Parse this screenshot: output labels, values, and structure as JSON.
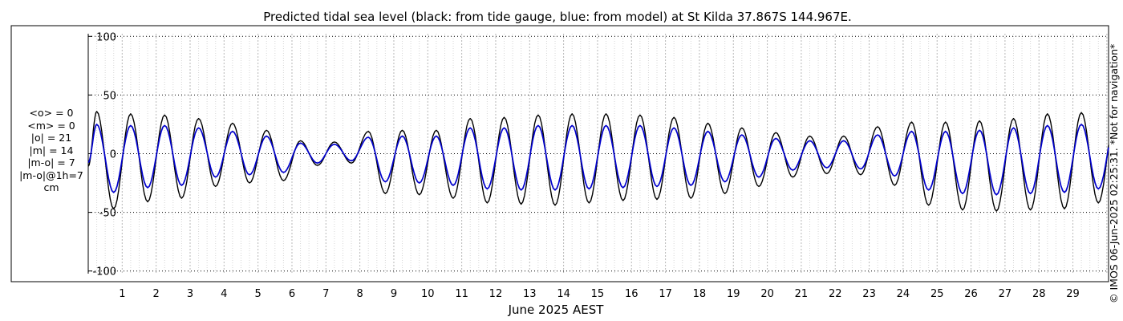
{
  "chart_data": {
    "type": "line",
    "title": "Predicted tidal sea level (black: from tide gauge, blue: from model) at St Kilda 37.867S 144.967E.",
    "xlabel": "June 2025 AEST",
    "ylabel": "",
    "ylim": [
      -105,
      105
    ],
    "xlim_days": [
      0.0,
      30.05
    ],
    "yticks": [
      100,
      50,
      0,
      -50,
      -100
    ],
    "ytick_labels": [
      "100",
      "50",
      "0",
      "-50",
      "-100"
    ],
    "xtick_labels": [
      "1",
      "2",
      "3",
      "4",
      "5",
      "6",
      "7",
      "8",
      "9",
      "10",
      "11",
      "12",
      "13",
      "14",
      "15",
      "16",
      "17",
      "18",
      "19",
      "20",
      "21",
      "22",
      "23",
      "24",
      "25",
      "26",
      "27",
      "28",
      "29"
    ],
    "grid": true,
    "series": [
      {
        "name": "tide gauge",
        "color": "#000000",
        "x_days": [
          0.25,
          0.75,
          1.25,
          1.75,
          2.25,
          2.75,
          3.25,
          3.75,
          4.25,
          4.75,
          5.25,
          5.75,
          6.25,
          6.75,
          7.25,
          7.75,
          8.25,
          8.75,
          9.25,
          9.75,
          10.25,
          10.75,
          11.25,
          11.75,
          12.25,
          12.75,
          13.25,
          13.75,
          14.25,
          14.75,
          15.25,
          15.75,
          16.25,
          16.75,
          17.25,
          17.75,
          18.25,
          18.75,
          19.25,
          19.75,
          20.25,
          20.75,
          21.25,
          21.75,
          22.25,
          22.75,
          23.25,
          23.75,
          24.25,
          24.75,
          25.25,
          25.75,
          26.25,
          26.75,
          27.25,
          27.75,
          28.25,
          28.75,
          29.25,
          29.75
        ],
        "values": [
          36,
          -47,
          34,
          -41,
          33,
          -38,
          30,
          -28,
          26,
          -25,
          20,
          -23,
          11,
          -10,
          10,
          -8,
          19,
          -34,
          20,
          -35,
          20,
          -38,
          30,
          -42,
          31,
          -43,
          33,
          -44,
          34,
          -42,
          34,
          -40,
          33,
          -39,
          31,
          -38,
          26,
          -34,
          22,
          -28,
          18,
          -20,
          15,
          -17,
          15,
          -18,
          23,
          -27,
          27,
          -44,
          27,
          -48,
          28,
          -49,
          30,
          -48,
          34,
          -47,
          35,
          -42
        ]
      },
      {
        "name": "model",
        "color": "#0000cc",
        "x_days": [
          0.25,
          0.75,
          1.25,
          1.75,
          2.25,
          2.75,
          3.25,
          3.75,
          4.25,
          4.75,
          5.25,
          5.75,
          6.25,
          6.75,
          7.25,
          7.75,
          8.25,
          8.75,
          9.25,
          9.75,
          10.25,
          10.75,
          11.25,
          11.75,
          12.25,
          12.75,
          13.25,
          13.75,
          14.25,
          14.75,
          15.25,
          15.75,
          16.25,
          16.75,
          17.25,
          17.75,
          18.25,
          18.75,
          19.25,
          19.75,
          20.25,
          20.75,
          21.25,
          21.75,
          22.25,
          22.75,
          23.25,
          23.75,
          24.25,
          24.75,
          25.25,
          25.75,
          26.25,
          26.75,
          27.25,
          27.75,
          28.25,
          28.75,
          29.25,
          29.75
        ],
        "values": [
          25,
          -33,
          24,
          -29,
          24,
          -27,
          22,
          -20,
          19,
          -18,
          15,
          -16,
          9,
          -8,
          8,
          -6,
          14,
          -24,
          15,
          -25,
          15,
          -27,
          22,
          -30,
          22,
          -31,
          24,
          -31,
          24,
          -30,
          24,
          -29,
          24,
          -28,
          22,
          -27,
          19,
          -24,
          16,
          -20,
          13,
          -14,
          11,
          -12,
          11,
          -13,
          16,
          -19,
          19,
          -31,
          19,
          -34,
          20,
          -35,
          22,
          -34,
          24,
          -33,
          25,
          -30
        ]
      }
    ]
  },
  "stats": {
    "mean_obs": "<o> = 0",
    "mean_model": "<m> = 0",
    "abs_obs": "|o| = 21",
    "abs_model": "|m| = 14",
    "abs_diff": "|m-o| = 7",
    "abs_diff_1h": "|m-o|@1h=7",
    "unit": "cm"
  },
  "copyright": "© IMOS 06-Jun-2025 02:25:31. *Not for navigation*"
}
